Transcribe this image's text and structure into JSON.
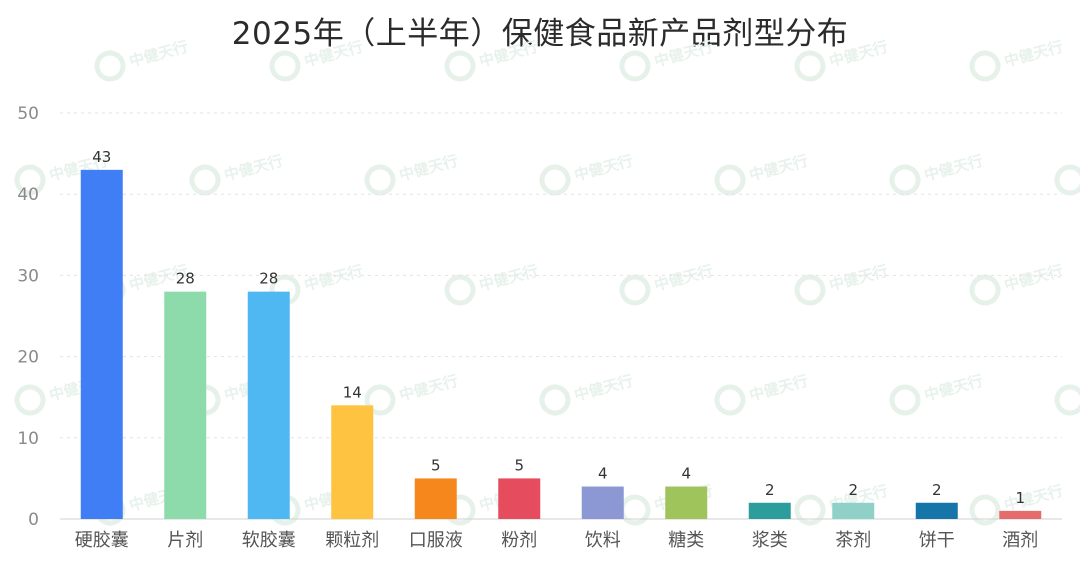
{
  "chart_data": {
    "type": "bar",
    "title": "2025年（上半年）保健食品新产品剂型分布",
    "xlabel": "",
    "ylabel": "",
    "ylim": [
      0,
      50
    ],
    "yticks": [
      0,
      10,
      20,
      30,
      40,
      50
    ],
    "grid": true,
    "legend": "none",
    "categories": [
      "硬胶囊",
      "片剂",
      "软胶囊",
      "颗粒剂",
      "口服液",
      "粉剂",
      "饮料",
      "糖类",
      "浆类",
      "茶剂",
      "饼干",
      "酒剂"
    ],
    "values": [
      43,
      28,
      28,
      14,
      5,
      5,
      4,
      4,
      2,
      2,
      2,
      1
    ],
    "colors": [
      "#3f7ef5",
      "#8ddbab",
      "#4fb8f2",
      "#fdc341",
      "#f6871d",
      "#e54c5e",
      "#8b98d3",
      "#9fc45c",
      "#2c9d9b",
      "#8fd0c9",
      "#1574a8",
      "#e66b6b"
    ]
  },
  "watermark": {
    "text": "中健天行",
    "icon": "leaf-ring-logo-icon",
    "color": "#e6f1ea"
  }
}
